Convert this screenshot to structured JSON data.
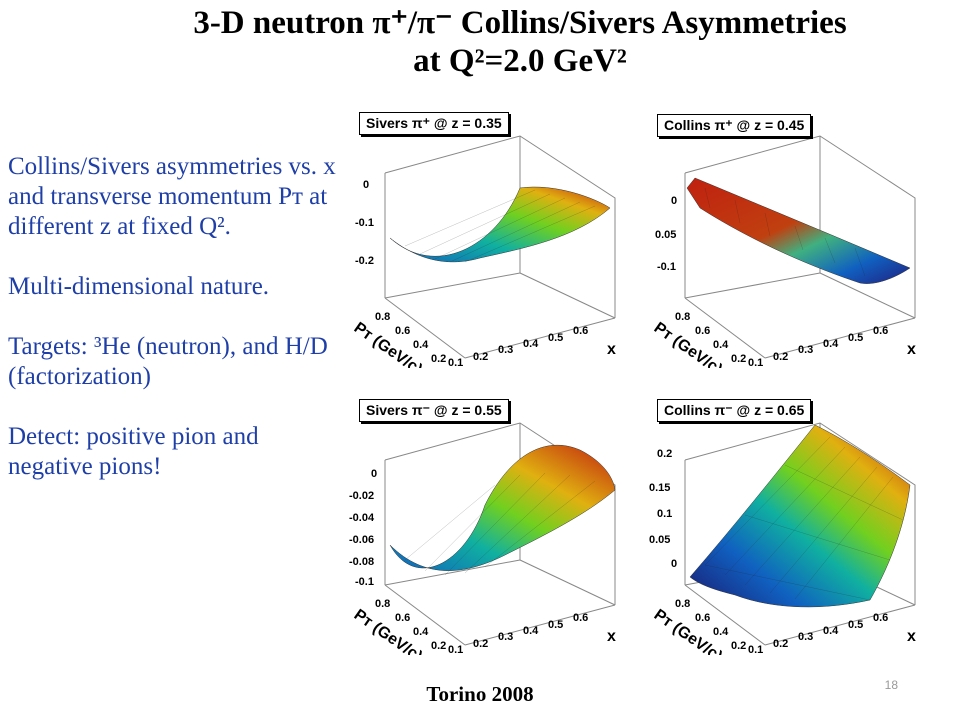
{
  "slide": {
    "title_line1": "3-D neutron π⁺/π⁻ Collins/Sivers Asymmetries",
    "title_line2": "at Q²=2.0 GeV²",
    "bullets": [
      "Collins/Sivers asymmetries vs. x and transverse momentum Pᴛ at different z at fixed Q².",
      "Multi-dimensional nature.",
      "Targets: ³He (neutron), and H/D (factorization)",
      "Detect: positive pion and negative pions!"
    ],
    "footer": "Torino 2008",
    "page_number": "18"
  },
  "plots": [
    {
      "label": "Sivers π⁺ @ z = 0.35",
      "z_ticks": [
        "0",
        "-0.1",
        "-0.2"
      ],
      "x_ticks": [
        "0.1",
        "0.2",
        "0.3",
        "0.4",
        "0.5",
        "0.6"
      ],
      "pt_ticks": [
        "0.8",
        "0.6",
        "0.4",
        "0.2"
      ],
      "x_label": "x",
      "pt_label": "Pᴛ (GeV/c)"
    },
    {
      "label": "Collins π⁺ @ z = 0.45",
      "z_ticks": [
        "0",
        "0.05",
        "-0.1"
      ],
      "x_ticks": [
        "0.1",
        "0.2",
        "0.3",
        "0.4",
        "0.5",
        "0.6"
      ],
      "pt_ticks": [
        "0.8",
        "0.6",
        "0.4",
        "0.2"
      ],
      "x_label": "x",
      "pt_label": "Pᴛ (GeV/c)"
    },
    {
      "label": "Sivers π⁻ @ z = 0.55",
      "z_ticks": [
        "0",
        "-0.02",
        "-0.04",
        "-0.06",
        "-0.08",
        "-0.1"
      ],
      "x_ticks": [
        "0.1",
        "0.2",
        "0.3",
        "0.4",
        "0.5",
        "0.6"
      ],
      "pt_ticks": [
        "0.8",
        "0.6",
        "0.4",
        "0.2"
      ],
      "x_label": "x",
      "pt_label": "Pᴛ (GeV/c)"
    },
    {
      "label": "Collins π⁻ @ z = 0.65",
      "z_ticks": [
        "0.2",
        "0.15",
        "0.1",
        "0.05",
        "0"
      ],
      "x_ticks": [
        "0.1",
        "0.2",
        "0.3",
        "0.4",
        "0.5",
        "0.6"
      ],
      "pt_ticks": [
        "0.8",
        "0.6",
        "0.4",
        "0.2"
      ],
      "x_label": "x",
      "pt_label": "Pᴛ (GeV/c)"
    }
  ]
}
